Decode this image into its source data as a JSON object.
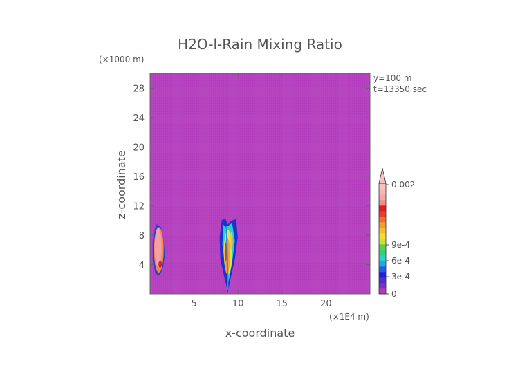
{
  "chart_data": {
    "type": "heatmap",
    "title": "H2O-l-Rain Mixing Ratio",
    "xlabel": "x-coordinate",
    "ylabel": "z-coordinate",
    "x_unit": "(×1E4 m)",
    "y_unit": "(×1000 m)",
    "annotations": [
      "y=100 m",
      "t=13350 sec"
    ],
    "xlim": [
      0,
      25
    ],
    "ylim": [
      0,
      30
    ],
    "x_ticks": [
      "5",
      "10",
      "15",
      "20"
    ],
    "y_ticks": [
      "4",
      "8",
      "12",
      "16",
      "20",
      "24",
      "28"
    ],
    "colorbar": {
      "labels": [
        "0",
        "3e-4",
        "6e-4",
        "9e-4",
        "0.002"
      ],
      "vmin": 0,
      "vmax": 0.002
    },
    "background_value": 0,
    "colors": {
      "background": "#b23cbc",
      "grid": "#c565cc"
    },
    "features": [
      {
        "x_center": 1.0,
        "z_bottom": 2.5,
        "z_top": 9.5,
        "peak": 0.002
      },
      {
        "x_center": 8.7,
        "z_bottom": 0.2,
        "z_top": 10.2,
        "peak": 0.0012
      }
    ]
  }
}
